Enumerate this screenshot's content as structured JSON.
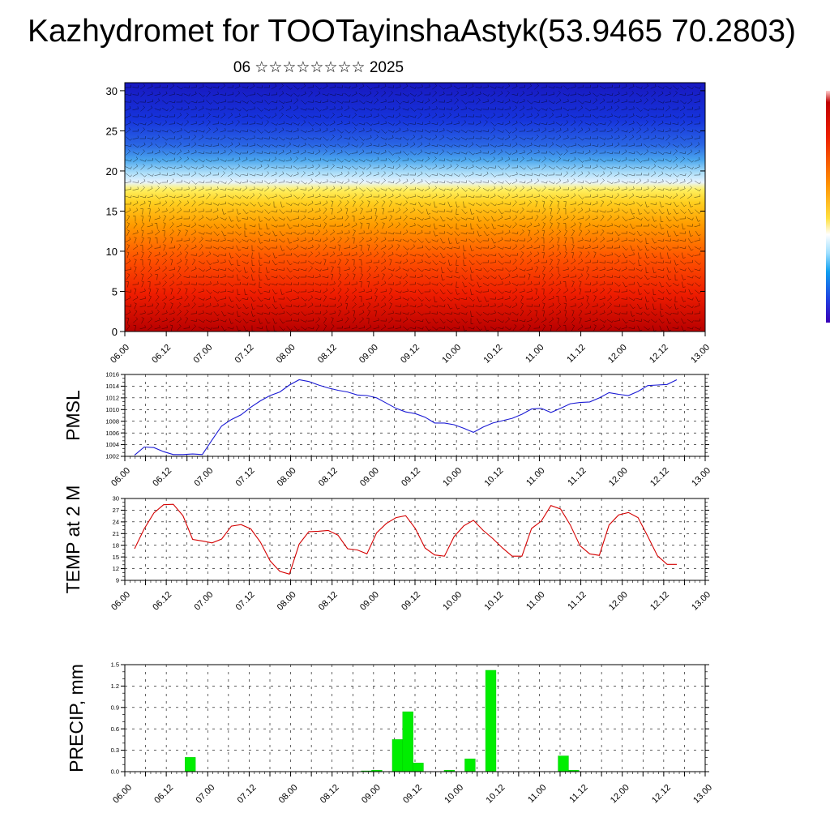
{
  "header": {
    "title": "Kazhydromet for TOOTayinshaAstyk(53.9465 70.2803)",
    "subtitle": "06 ☆☆☆☆☆☆☆☆ 2025"
  },
  "colors": {
    "pmsl_line": "#1a1ad4",
    "temp_line": "#d40000",
    "precip_bar": "#00ee00",
    "grid": "#000000",
    "wind_barb": "#000000"
  },
  "chart_data": [
    {
      "type": "heatmap",
      "panel": "cross-section",
      "title": "",
      "xlabel": "",
      "ylabel": "",
      "x_tick_labels": [
        "06.00",
        "06.12",
        "07.00",
        "07.12",
        "08.00",
        "08.12",
        "09.00",
        "09.12",
        "10.00",
        "10.12",
        "11.00",
        "11.12",
        "12.00",
        "12.12",
        "13.00"
      ],
      "x_range": [
        0,
        14
      ],
      "ylim": [
        0,
        31
      ],
      "y_ticks": [
        0,
        5,
        10,
        15,
        20,
        25,
        30
      ],
      "y_tick_labels": [
        "0",
        "5",
        "10",
        "15",
        "20",
        "25",
        "30"
      ],
      "color_scale": "blue-white-yellow-orange-red (cold aloft, warm near surface)",
      "transition_level": 17,
      "overlay": "wind barbs",
      "colorbar": "right edge, labels not visible"
    },
    {
      "type": "line",
      "panel": "pmsl",
      "ylabel": "PMSL",
      "ylim": [
        1002,
        1016
      ],
      "y_ticks": [
        1002,
        1004,
        1006,
        1008,
        1010,
        1012,
        1014,
        1016
      ],
      "y_tick_labels": [
        "1002",
        "1004",
        "1006",
        "1008",
        "1010",
        "1012",
        "1014",
        "1016"
      ],
      "x_tick_labels": [
        "06.00",
        "06.12",
        "07.00",
        "07.12",
        "08.00",
        "08.12",
        "09.00",
        "09.12",
        "10.00",
        "10.12",
        "11.00",
        "11.12",
        "12.00",
        "12.12",
        "13.00"
      ],
      "x_range": [
        0,
        14
      ],
      "x_step": 0.25,
      "series": [
        {
          "values": [
            1002.2,
            1003.6,
            1003.5,
            1002.8,
            1002.3,
            1002.3,
            1002.4,
            1002.3,
            1004.8,
            1007.2,
            1008.3,
            1009.1,
            1010.4,
            1011.5,
            1012.4,
            1013.0,
            1014.2,
            1015.1,
            1014.8,
            1014.2,
            1013.7,
            1013.3,
            1013.0,
            1012.5,
            1012.4,
            1012.0,
            1011.1,
            1010.2,
            1009.6,
            1009.3,
            1008.7,
            1007.7,
            1007.7,
            1007.4,
            1006.8,
            1006.1,
            1007.0,
            1007.7,
            1008.1,
            1008.5,
            1009.2,
            1010.1,
            1010.2,
            1009.5,
            1010.2,
            1011.0,
            1011.2,
            1011.3,
            1012.0,
            1012.9,
            1012.6,
            1012.4,
            1013.1,
            1014.1,
            1014.2,
            1014.3,
            1015.1
          ]
        }
      ]
    },
    {
      "type": "line",
      "panel": "temperature",
      "ylabel": "TEMP at 2 M",
      "ylim": [
        9,
        30
      ],
      "y_ticks": [
        9,
        12,
        15,
        18,
        21,
        24,
        27,
        30
      ],
      "y_tick_labels": [
        "9",
        "12",
        "15",
        "18",
        "21",
        "24",
        "27",
        "30"
      ],
      "x_tick_labels": [
        "06.00",
        "06.12",
        "07.00",
        "07.12",
        "08.00",
        "08.12",
        "09.00",
        "09.12",
        "10.00",
        "10.12",
        "11.00",
        "11.12",
        "12.00",
        "12.12",
        "13.00"
      ],
      "x_range": [
        0,
        14
      ],
      "x_step": 0.25,
      "series": [
        {
          "values": [
            17.1,
            22.2,
            26.3,
            28.4,
            28.5,
            25.6,
            19.5,
            19.1,
            18.6,
            19.6,
            22.9,
            23.3,
            22.2,
            18.8,
            14.0,
            11.3,
            10.6,
            18.3,
            21.5,
            21.6,
            21.8,
            20.6,
            17.1,
            16.8,
            15.8,
            21.2,
            23.6,
            25.1,
            25.6,
            22.3,
            17.3,
            15.5,
            15.2,
            20.2,
            23.0,
            24.4,
            21.8,
            19.7,
            17.3,
            15.2,
            15.2,
            22.3,
            24.2,
            28.2,
            27.3,
            23.2,
            17.9,
            15.8,
            15.4,
            23.2,
            25.8,
            26.4,
            25.1,
            20.3,
            15.3,
            13.1,
            13.1
          ]
        }
      ]
    },
    {
      "type": "bar",
      "panel": "precipitation",
      "ylabel": "PRECIP, mm",
      "ylim": [
        0,
        1.5
      ],
      "y_ticks": [
        0,
        0.3,
        0.6,
        0.9,
        1.2,
        1.5
      ],
      "y_tick_labels": [
        "0.0",
        "0.3",
        "0.6",
        "0.9",
        "1.2",
        "1.5"
      ],
      "x_tick_labels": [
        "06.00",
        "06.12",
        "07.00",
        "07.12",
        "08.00",
        "08.12",
        "09.00",
        "09.12",
        "10.00",
        "10.12",
        "11.00",
        "11.12",
        "12.00",
        "12.12",
        "13.00"
      ],
      "x_range": [
        0,
        14
      ],
      "bar_width": 0.25,
      "x": [
        1.5,
        5.75,
        6.0,
        6.5,
        6.75,
        7.0,
        7.75,
        8.25,
        8.75,
        10.5,
        10.75
      ],
      "values": [
        0.2,
        0.01,
        0.02,
        0.45,
        0.84,
        0.12,
        0.02,
        0.18,
        1.42,
        0.22,
        0.02
      ]
    }
  ]
}
